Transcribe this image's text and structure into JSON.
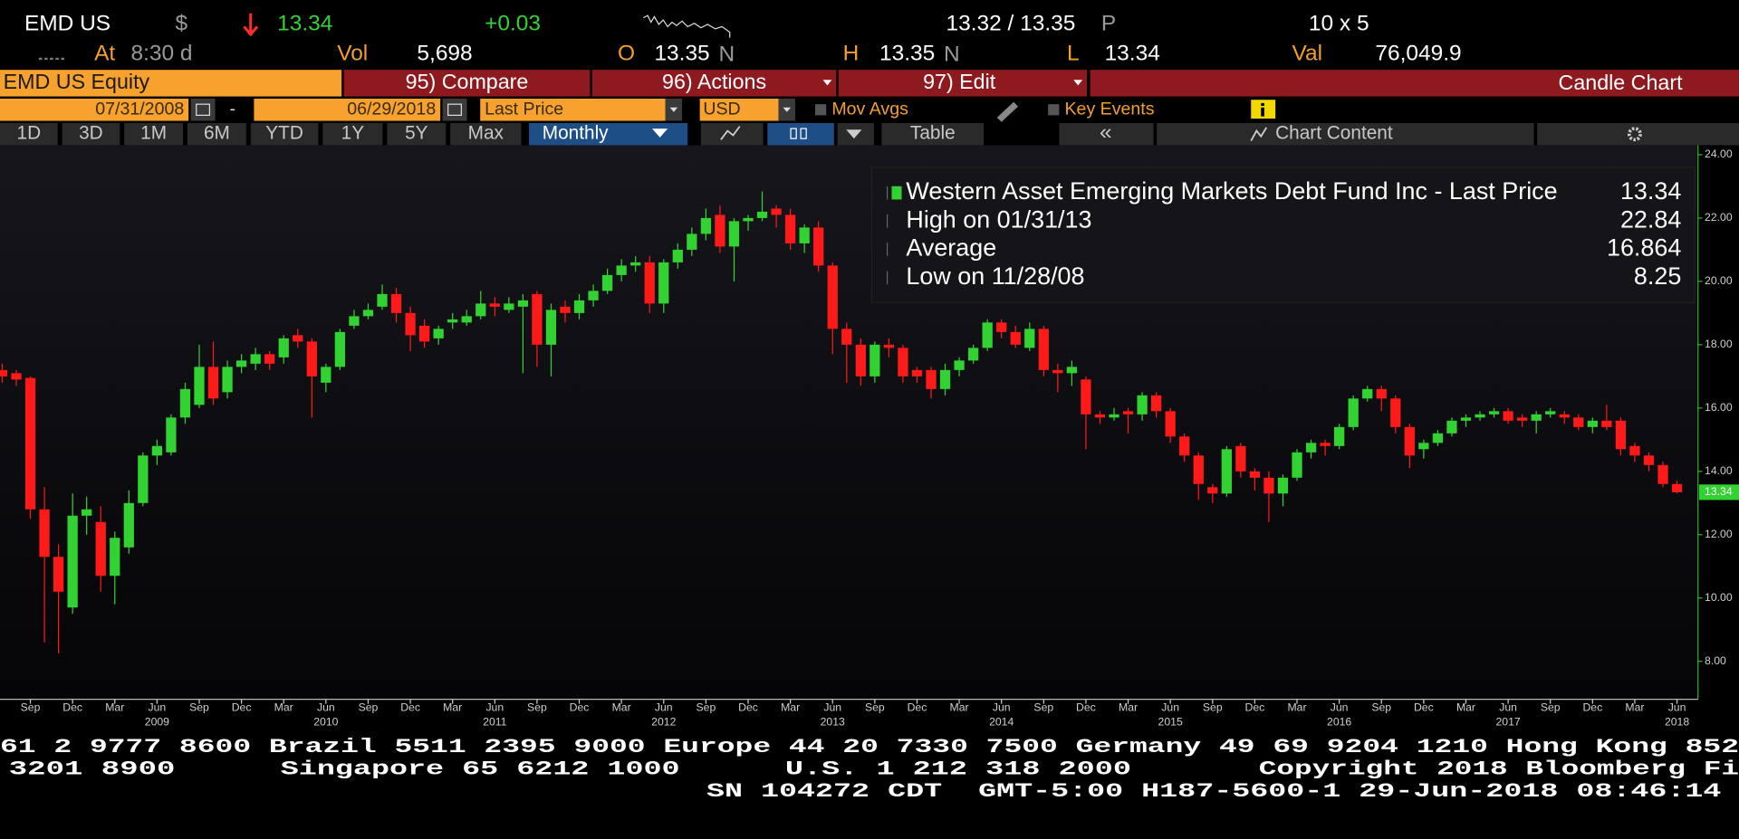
{
  "header": {
    "ticker": "EMD US",
    "currency": "$",
    "last": "13.34",
    "change": "+0.03",
    "bid_ask": "13.32 / 13.35",
    "bid_ask_source": "P",
    "size": "10 x 5",
    "at_label": "At",
    "time": "8:30 d",
    "vol_label": "Vol",
    "vol": "5,698",
    "open_label": "O",
    "open": "13.35",
    "open_source": "N",
    "high_label": "H",
    "high": "13.35",
    "high_source": "N",
    "low_label": "L",
    "low": "13.34",
    "val_label": "Val",
    "val": "76,049.9"
  },
  "menu": {
    "security": "EMD US Equity",
    "compare": "95) Compare",
    "actions": "96) Actions",
    "edit": "97) Edit",
    "view": "Candle Chart"
  },
  "controls": {
    "start_date": "07/31/2008",
    "date_separator": "-",
    "end_date": "06/29/2018",
    "field": "Last Price",
    "currency": "USD",
    "mov_avgs": "Mov Avgs",
    "key_events": "Key Events"
  },
  "tabs": [
    "1D",
    "3D",
    "1M",
    "6M",
    "YTD",
    "1Y",
    "5Y",
    "Max"
  ],
  "period": "Monthly",
  "table": "Table",
  "back": "«",
  "chart_content": "Chart Content",
  "chart_data": {
    "type": "candlestick",
    "legend": [
      {
        "label": "Western Asset Emerging Markets Debt Fund Inc - Last Price",
        "value": 13.34
      },
      {
        "label": "High on 01/31/13",
        "value": 22.84
      },
      {
        "label": "Average",
        "value": 16.864
      },
      {
        "label": "Low on 11/28/08",
        "value": 8.25
      }
    ],
    "categories": [
      null,
      null,
      "Sep",
      null,
      null,
      "Dec",
      null,
      null,
      "Mar",
      null,
      null,
      "Jun",
      null,
      null,
      "Sep",
      null,
      null,
      "Dec",
      null,
      null,
      "Mar",
      null,
      null,
      "Jun",
      null,
      null,
      "Sep",
      null,
      null,
      "Dec",
      null,
      null,
      "Mar",
      null,
      null,
      "Jun",
      null,
      null,
      "Sep",
      null,
      null,
      "Dec",
      null,
      null,
      "Mar",
      null,
      null,
      "Jun",
      null,
      null,
      "Sep",
      null,
      null,
      "Dec",
      null,
      null,
      "Mar",
      null,
      null,
      "Jun",
      null,
      null,
      "Sep",
      null,
      null,
      "Dec",
      null,
      null,
      "Mar",
      null,
      null,
      "Jun",
      null,
      null,
      "Sep",
      null,
      null,
      "Dec",
      null,
      null,
      "Mar",
      null,
      null,
      "Jun",
      null,
      null,
      "Sep",
      null,
      null,
      "Dec",
      null,
      null,
      "Mar",
      null,
      null,
      "Jun",
      null,
      null,
      "Sep",
      null,
      null,
      "Dec",
      null,
      null,
      "Mar",
      null,
      null,
      "Jun",
      null,
      null,
      "Sep",
      null,
      null,
      "Dec",
      null,
      null,
      "Mar",
      null,
      null,
      "Jun"
    ],
    "category_years": [
      null,
      null,
      null,
      null,
      null,
      null,
      null,
      null,
      null,
      null,
      null,
      "2009",
      null,
      null,
      null,
      null,
      null,
      null,
      null,
      null,
      null,
      null,
      null,
      "2010",
      null,
      null,
      null,
      null,
      null,
      null,
      null,
      null,
      null,
      null,
      null,
      "2011",
      null,
      null,
      null,
      null,
      null,
      null,
      null,
      null,
      null,
      null,
      null,
      "2012",
      null,
      null,
      null,
      null,
      null,
      null,
      null,
      null,
      null,
      null,
      null,
      "2013",
      null,
      null,
      null,
      null,
      null,
      null,
      null,
      null,
      null,
      null,
      null,
      "2014",
      null,
      null,
      null,
      null,
      null,
      null,
      null,
      null,
      null,
      null,
      null,
      "2015",
      null,
      null,
      null,
      null,
      null,
      null,
      null,
      null,
      null,
      null,
      null,
      "2016",
      null,
      null,
      null,
      null,
      null,
      null,
      null,
      null,
      null,
      null,
      null,
      "2017",
      null,
      null,
      null,
      null,
      null,
      null,
      null,
      null,
      null,
      null,
      null,
      "2018"
    ],
    "open": [
      17.2,
      17.1,
      16.95,
      12.8,
      11.3,
      9.7,
      12.6,
      12.4,
      10.7,
      11.6,
      13.0,
      14.5,
      14.6,
      15.7,
      16.1,
      17.3,
      16.5,
      17.3,
      17.4,
      17.7,
      17.6,
      18.3,
      18.1,
      16.8,
      17.3,
      18.6,
      18.9,
      19.2,
      19.6,
      19.0,
      18.6,
      18.2,
      18.7,
      18.7,
      18.9,
      19.3,
      19.1,
      19.2,
      19.6,
      18.0,
      19.2,
      19.0,
      19.4,
      19.7,
      20.2,
      20.5,
      20.6,
      19.3,
      20.6,
      21.0,
      21.5,
      22.1,
      21.1,
      21.9,
      22.0,
      22.3,
      22.1,
      21.2,
      21.7,
      20.5,
      18.5,
      18.0,
      17.0,
      18.0,
      17.9,
      17.2,
      17.2,
      16.6,
      17.2,
      17.5,
      17.9,
      18.7,
      18.4,
      17.9,
      18.5,
      17.2,
      17.1,
      16.9,
      15.8,
      15.7,
      15.9,
      15.8,
      16.4,
      15.9,
      15.1,
      14.5,
      13.5,
      13.3,
      14.8,
      14.0,
      13.8,
      13.3,
      13.8,
      14.6,
      14.9,
      14.8,
      15.4,
      16.3,
      16.6,
      16.3,
      15.4,
      14.7,
      14.9,
      15.2,
      15.6,
      15.7,
      15.8,
      15.9,
      15.7,
      15.6,
      15.8,
      15.8,
      15.7,
      15.4,
      15.6,
      15.6,
      14.8,
      14.5,
      14.2,
      13.6
    ],
    "high": [
      17.4,
      17.2,
      17.0,
      13.5,
      11.7,
      13.3,
      13.2,
      12.9,
      12.1,
      13.4,
      14.6,
      15.0,
      15.8,
      16.8,
      18.0,
      18.1,
      17.5,
      17.7,
      17.9,
      17.8,
      18.3,
      18.5,
      18.2,
      17.4,
      18.5,
      19.1,
      19.3,
      19.9,
      19.8,
      19.2,
      18.8,
      18.6,
      19.0,
      19.1,
      19.7,
      19.5,
      19.5,
      19.6,
      19.7,
      19.3,
      19.4,
      19.6,
      19.9,
      20.4,
      20.7,
      20.8,
      20.8,
      20.7,
      21.2,
      21.7,
      22.3,
      22.4,
      22.0,
      22.1,
      22.84,
      22.4,
      22.3,
      21.8,
      21.9,
      20.6,
      18.7,
      18.2,
      18.1,
      18.2,
      18.0,
      17.3,
      17.3,
      17.4,
      17.6,
      18.0,
      18.8,
      18.8,
      18.6,
      18.7,
      18.6,
      17.4,
      17.5,
      17.0,
      15.9,
      16.0,
      16.0,
      16.5,
      16.5,
      16.0,
      15.2,
      14.6,
      13.6,
      14.8,
      14.9,
      14.1,
      14.0,
      13.9,
      14.7,
      15.0,
      15.0,
      15.5,
      16.4,
      16.7,
      16.7,
      16.4,
      15.5,
      15.0,
      15.3,
      15.7,
      15.8,
      15.9,
      16.0,
      16.0,
      15.8,
      15.9,
      16.0,
      15.9,
      15.8,
      15.7,
      16.1,
      15.7,
      14.9,
      14.6,
      14.3,
      13.7
    ],
    "low": [
      16.8,
      16.7,
      12.5,
      8.6,
      8.25,
      9.5,
      12.0,
      10.2,
      9.8,
      11.4,
      12.9,
      14.2,
      14.5,
      15.5,
      16.0,
      16.1,
      16.3,
      17.1,
      17.2,
      17.2,
      17.4,
      17.9,
      15.7,
      16.5,
      17.2,
      18.5,
      18.8,
      19.1,
      18.7,
      17.8,
      17.9,
      18.0,
      18.5,
      18.6,
      18.8,
      18.9,
      19.0,
      17.1,
      17.3,
      17.0,
      18.7,
      18.8,
      19.2,
      19.6,
      20.0,
      20.3,
      19.0,
      19.0,
      20.4,
      20.8,
      21.3,
      20.9,
      20.0,
      21.6,
      21.9,
      21.7,
      21.0,
      20.9,
      20.3,
      17.7,
      16.8,
      16.7,
      16.8,
      17.6,
      16.8,
      16.8,
      16.3,
      16.4,
      17.0,
      17.4,
      17.8,
      18.2,
      17.9,
      17.8,
      17.0,
      16.5,
      16.7,
      14.7,
      15.5,
      15.6,
      15.2,
      15.6,
      15.7,
      14.9,
      14.3,
      13.1,
      13.0,
      13.2,
      13.8,
      13.4,
      12.4,
      12.9,
      13.7,
      14.4,
      14.5,
      14.7,
      15.3,
      16.2,
      15.9,
      15.2,
      14.1,
      14.4,
      14.8,
      15.1,
      15.4,
      15.6,
      15.7,
      15.5,
      15.4,
      15.2,
      15.7,
      15.5,
      15.3,
      15.2,
      15.3,
      14.5,
      14.3,
      14.0,
      13.5,
      13.3
    ],
    "close": [
      17.0,
      16.9,
      12.8,
      11.3,
      10.2,
      12.6,
      12.8,
      10.7,
      11.9,
      13.0,
      14.5,
      14.8,
      15.7,
      16.6,
      17.3,
      16.3,
      17.3,
      17.5,
      17.7,
      17.4,
      18.2,
      18.1,
      17.0,
      17.3,
      18.4,
      18.9,
      19.1,
      19.6,
      19.0,
      18.3,
      18.1,
      18.5,
      18.8,
      18.9,
      19.3,
      19.2,
      19.3,
      19.4,
      18.0,
      19.1,
      19.0,
      19.4,
      19.7,
      20.2,
      20.5,
      20.6,
      19.3,
      20.6,
      21.0,
      21.5,
      22.0,
      21.1,
      21.9,
      22.0,
      22.2,
      22.1,
      21.2,
      21.7,
      20.5,
      18.5,
      18.0,
      17.0,
      18.0,
      17.9,
      17.0,
      17.0,
      16.6,
      17.2,
      17.5,
      17.9,
      18.7,
      18.4,
      18.0,
      18.5,
      17.2,
      17.1,
      17.3,
      15.8,
      15.7,
      15.8,
      15.8,
      16.4,
      15.9,
      15.1,
      14.5,
      13.6,
      13.3,
      14.7,
      14.0,
      13.8,
      13.3,
      13.8,
      14.6,
      14.9,
      14.8,
      15.4,
      16.3,
      16.6,
      16.3,
      15.4,
      14.5,
      14.9,
      15.2,
      15.6,
      15.7,
      15.8,
      15.9,
      15.6,
      15.6,
      15.8,
      15.9,
      15.7,
      15.4,
      15.6,
      15.4,
      14.7,
      14.5,
      14.2,
      13.6,
      13.34
    ],
    "up_color": "#33d233",
    "down_color": "#ff1a1a",
    "last_value": 13.34,
    "ylim": [
      6.8,
      24.3
    ],
    "yticks": [
      {
        "value": 8,
        "label": "8.00"
      },
      {
        "value": 10,
        "label": "10.00"
      },
      {
        "value": 12,
        "label": "12.00"
      },
      {
        "value": 14,
        "label": "14.00"
      },
      {
        "value": 16,
        "label": "16.00"
      },
      {
        "value": 18,
        "label": "18.00"
      },
      {
        "value": 20,
        "label": "20.00"
      },
      {
        "value": 22,
        "label": "22.00"
      },
      {
        "value": 24,
        "label": "24.00"
      }
    ],
    "grid": false
  },
  "footer": {
    "lines": [
      [
        "61 2 9777 8600 Brazil 5511 2395 9000 Europe 44 20 7330 7500 Germany 49 69 9204 1210 Hong Kong 852"
      ],
      [
        "3201 8900",
        "Singapore 65 6212 1000",
        "U.S. 1 212 318 2000",
        "Copyright 2018 Bloomberg Fi"
      ],
      [
        "SN 104272 CDT  GMT-5:00 H187-5600-1 29-Jun-2018 08:46:14"
      ]
    ]
  }
}
